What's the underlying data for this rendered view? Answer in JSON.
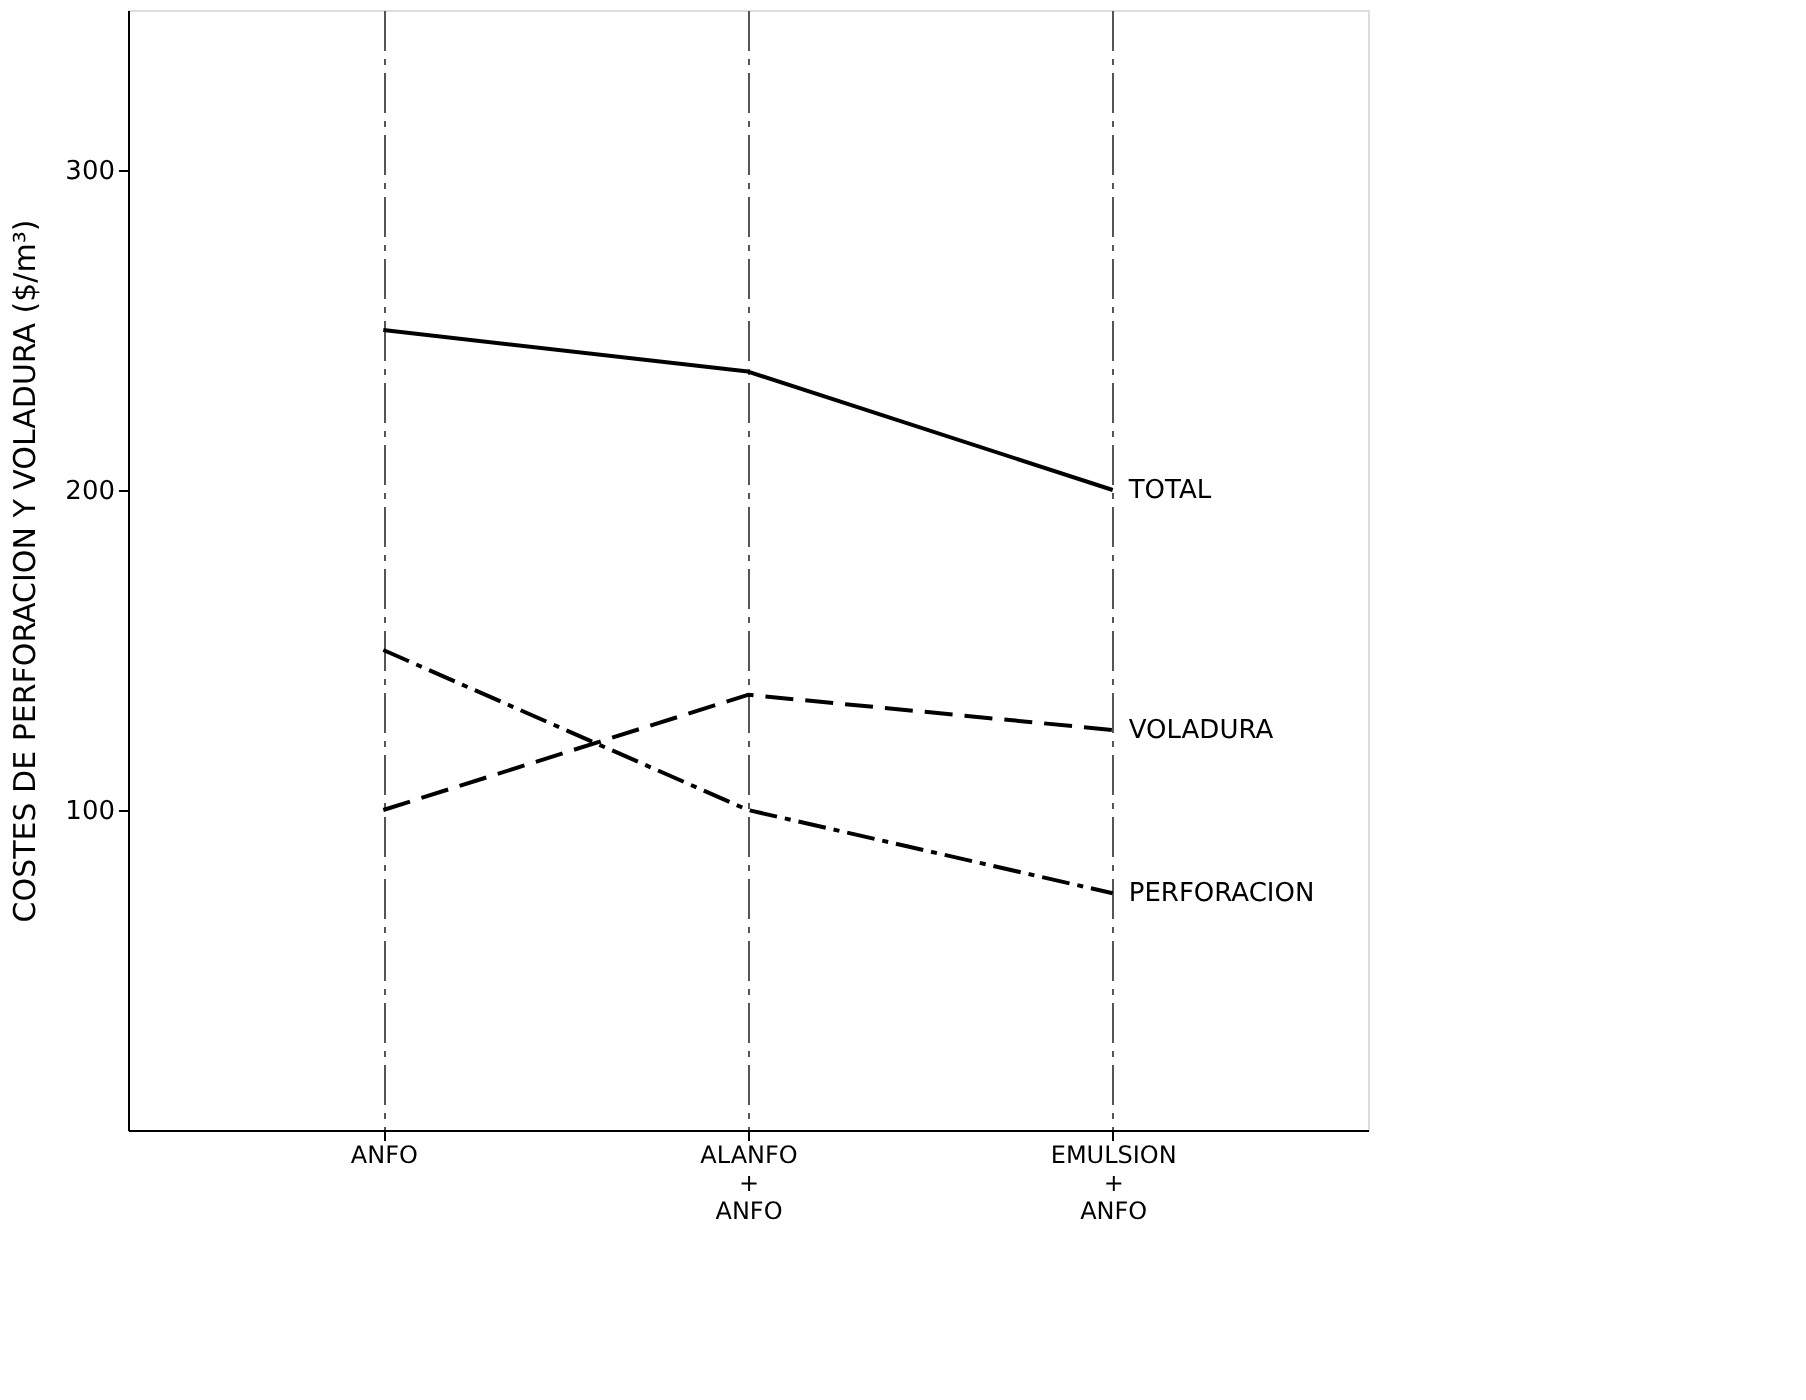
{
  "chart_data": {
    "type": "line",
    "ylabel": "COSTES DE PERFORACION Y VOLADURA ($/m³)",
    "categories": [
      "ANFO",
      "ALANFO\n+\nANFO",
      "EMULSION\n+\nANFO"
    ],
    "series": [
      {
        "name": "TOTAL",
        "color": "#000000",
        "values": [
          250,
          237,
          200
        ],
        "line_style": "solid"
      },
      {
        "name": "VOLADURA",
        "color": "#000000",
        "values": [
          100,
          136,
          125
        ],
        "line_style": "dashed"
      },
      {
        "name": "PERFORACION",
        "color": "#000000",
        "values": [
          150,
          100,
          74
        ],
        "line_style": "dashdot"
      }
    ],
    "ylim": [
      0,
      350
    ],
    "yticks": [
      100,
      200,
      300
    ],
    "grid": "x",
    "legend": false,
    "marker": "none"
  }
}
